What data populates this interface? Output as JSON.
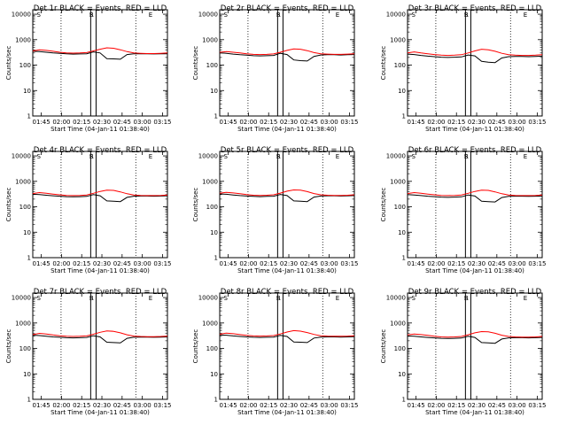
{
  "colors": {
    "events": "#000000",
    "lld": "#ff0000",
    "axis": "#000000",
    "background": "#ffffff"
  },
  "shared": {
    "xlabel": "Start Time (04-Jan-11 01:38:40)",
    "ylabel": "Counts/sec",
    "xticks": [
      "01:45",
      "02:00",
      "02:15",
      "02:30",
      "02:45",
      "03:00",
      "03:15"
    ],
    "yticks": [
      "1",
      "10",
      "100",
      "1000",
      "10000"
    ],
    "x_range_minutes_after_start": [
      0,
      100
    ],
    "ylim": [
      1,
      15000
    ],
    "y_scale": "log",
    "dotted_vertical_markers_minutes": [
      21,
      76.5
    ],
    "solid_vertical_markers_minutes": [
      43,
      47
    ],
    "marker_labels": [
      "S",
      "S",
      "R",
      "E"
    ]
  },
  "chart_data": [
    {
      "type": "line",
      "title": "Det 1r BLACK = Events, RED = LLD",
      "x": [
        0,
        5,
        10,
        15,
        20,
        25,
        30,
        35,
        40,
        45,
        50,
        55,
        60,
        65,
        70,
        75,
        80,
        85,
        90,
        95,
        100
      ],
      "series": [
        {
          "values": [
            350,
            340,
            320,
            300,
            290,
            280,
            270,
            275,
            280,
            330,
            300,
            180,
            175,
            170,
            260,
            280,
            280,
            280,
            275,
            280,
            280
          ]
        },
        {
          "values": [
            360,
            400,
            380,
            350,
            320,
            300,
            295,
            300,
            310,
            360,
            420,
            480,
            460,
            400,
            340,
            300,
            290,
            285,
            285,
            290,
            300
          ]
        }
      ]
    },
    {
      "type": "line",
      "title": "Det 2r BLACK = Events, RED = LLD",
      "x": [
        0,
        5,
        10,
        15,
        20,
        25,
        30,
        35,
        40,
        45,
        50,
        55,
        60,
        65,
        70,
        75,
        80,
        85,
        90,
        95,
        100
      ],
      "series": [
        {
          "values": [
            300,
            290,
            270,
            255,
            245,
            235,
            230,
            235,
            240,
            290,
            260,
            160,
            150,
            145,
            220,
            250,
            255,
            255,
            250,
            255,
            260
          ]
        },
        {
          "values": [
            320,
            340,
            320,
            300,
            280,
            265,
            260,
            265,
            275,
            320,
            380,
            430,
            420,
            370,
            310,
            280,
            270,
            265,
            265,
            270,
            280
          ]
        }
      ]
    },
    {
      "type": "line",
      "title": "Det 3r BLACK = Events, RED = LLD",
      "x": [
        0,
        5,
        10,
        15,
        20,
        25,
        30,
        35,
        40,
        45,
        50,
        55,
        60,
        65,
        70,
        75,
        80,
        85,
        90,
        95,
        100
      ],
      "series": [
        {
          "values": [
            270,
            260,
            240,
            225,
            215,
            205,
            200,
            205,
            210,
            250,
            230,
            140,
            130,
            125,
            190,
            215,
            220,
            220,
            215,
            220,
            225
          ]
        },
        {
          "values": [
            300,
            330,
            300,
            280,
            260,
            245,
            240,
            245,
            255,
            300,
            360,
            420,
            400,
            350,
            290,
            255,
            245,
            240,
            240,
            245,
            255
          ]
        }
      ]
    },
    {
      "type": "line",
      "title": "Det 4r BLACK = Events, RED = LLD",
      "x": [
        0,
        5,
        10,
        15,
        20,
        25,
        30,
        35,
        40,
        45,
        50,
        55,
        60,
        65,
        70,
        75,
        80,
        85,
        90,
        95,
        100
      ],
      "series": [
        {
          "values": [
            310,
            300,
            285,
            270,
            260,
            250,
            245,
            250,
            255,
            300,
            270,
            170,
            165,
            160,
            235,
            260,
            265,
            265,
            260,
            265,
            270
          ]
        },
        {
          "values": [
            330,
            360,
            340,
            315,
            295,
            280,
            275,
            280,
            290,
            340,
            400,
            450,
            440,
            385,
            325,
            290,
            280,
            275,
            275,
            280,
            290
          ]
        }
      ]
    },
    {
      "type": "line",
      "title": "Det 5r BLACK = Events, RED = LLD",
      "x": [
        0,
        5,
        10,
        15,
        20,
        25,
        30,
        35,
        40,
        45,
        50,
        55,
        60,
        65,
        70,
        75,
        80,
        85,
        90,
        95,
        100
      ],
      "series": [
        {
          "values": [
            320,
            310,
            290,
            275,
            265,
            255,
            250,
            255,
            260,
            305,
            275,
            170,
            165,
            160,
            240,
            265,
            270,
            270,
            265,
            270,
            275
          ]
        },
        {
          "values": [
            340,
            370,
            350,
            325,
            300,
            285,
            280,
            285,
            295,
            345,
            410,
            460,
            450,
            395,
            330,
            295,
            285,
            280,
            280,
            285,
            295
          ]
        }
      ]
    },
    {
      "type": "line",
      "title": "Det 6r BLACK = Events, RED = LLD",
      "x": [
        0,
        5,
        10,
        15,
        20,
        25,
        30,
        35,
        40,
        45,
        50,
        55,
        60,
        65,
        70,
        75,
        80,
        85,
        90,
        95,
        100
      ],
      "series": [
        {
          "values": [
            300,
            290,
            275,
            260,
            250,
            240,
            235,
            240,
            245,
            290,
            265,
            165,
            160,
            155,
            230,
            255,
            260,
            260,
            255,
            260,
            265
          ]
        },
        {
          "values": [
            330,
            360,
            340,
            315,
            295,
            280,
            275,
            280,
            290,
            340,
            400,
            450,
            440,
            385,
            325,
            290,
            280,
            275,
            275,
            280,
            290
          ]
        }
      ]
    },
    {
      "type": "line",
      "title": "Det 7r BLACK = Events, RED = LLD",
      "x": [
        0,
        5,
        10,
        15,
        20,
        25,
        30,
        35,
        40,
        45,
        50,
        55,
        60,
        65,
        70,
        75,
        80,
        85,
        90,
        95,
        100
      ],
      "series": [
        {
          "values": [
            330,
            320,
            300,
            285,
            275,
            265,
            260,
            265,
            270,
            315,
            285,
            175,
            170,
            165,
            250,
            275,
            280,
            280,
            275,
            280,
            285
          ]
        },
        {
          "values": [
            350,
            390,
            370,
            340,
            315,
            300,
            295,
            300,
            310,
            360,
            430,
            490,
            470,
            410,
            345,
            305,
            295,
            290,
            290,
            295,
            305
          ]
        }
      ]
    },
    {
      "type": "line",
      "title": "Det 8r BLACK = Events, RED = LLD",
      "x": [
        0,
        5,
        10,
        15,
        20,
        25,
        30,
        35,
        40,
        45,
        50,
        55,
        60,
        65,
        70,
        75,
        80,
        85,
        90,
        95,
        100
      ],
      "series": [
        {
          "values": [
            340,
            330,
            310,
            295,
            285,
            275,
            270,
            275,
            280,
            325,
            295,
            180,
            175,
            170,
            255,
            280,
            285,
            285,
            280,
            285,
            290
          ]
        },
        {
          "values": [
            360,
            400,
            380,
            350,
            325,
            310,
            305,
            310,
            320,
            370,
            440,
            500,
            480,
            420,
            355,
            315,
            305,
            300,
            300,
            305,
            315
          ]
        }
      ]
    },
    {
      "type": "line",
      "title": "Det 9r BLACK = Events, RED = LLD",
      "x": [
        0,
        5,
        10,
        15,
        20,
        25,
        30,
        35,
        40,
        45,
        50,
        55,
        60,
        65,
        70,
        75,
        80,
        85,
        90,
        95,
        100
      ],
      "series": [
        {
          "values": [
            310,
            300,
            285,
            270,
            260,
            250,
            245,
            250,
            255,
            300,
            270,
            170,
            165,
            160,
            235,
            260,
            265,
            265,
            260,
            265,
            270
          ]
        },
        {
          "values": [
            340,
            370,
            350,
            325,
            300,
            285,
            280,
            285,
            295,
            345,
            410,
            460,
            450,
            395,
            330,
            295,
            285,
            280,
            280,
            285,
            295
          ]
        }
      ]
    }
  ]
}
